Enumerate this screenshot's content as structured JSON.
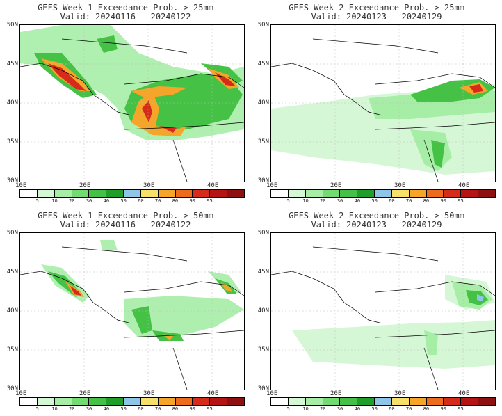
{
  "panels": [
    {
      "title": "GEFS Week-1 Exceedance Prob. > 25mm",
      "valid": "Valid: 20240116 - 20240122"
    },
    {
      "title": "GEFS Week-2 Exceedance Prob. > 25mm",
      "valid": "Valid: 20240123 - 20240129"
    },
    {
      "title": "GEFS Week-1 Exceedance Prob. > 50mm",
      "valid": "Valid: 20240116 - 20240122"
    },
    {
      "title": "GEFS Week-2 Exceedance Prob. > 50mm",
      "valid": "Valid: 20240123 - 20240129"
    }
  ],
  "lat_labels": [
    "50N",
    "45N",
    "40N",
    "35N",
    "30N"
  ],
  "lon_labels": [
    "10E",
    "20E",
    "30E",
    "40E"
  ],
  "colorbar": {
    "colors": [
      "#ffffff",
      "#d4f7d4",
      "#a6eda6",
      "#72db72",
      "#45c245",
      "#1f9e2a",
      "#8fc6e8",
      "#f6e06a",
      "#f4a52a",
      "#ee6a1c",
      "#d62a1a",
      "#b41414",
      "#8f1010"
    ],
    "labels": [
      "5",
      "10",
      "20",
      "30",
      "40",
      "50",
      "60",
      "70",
      "80",
      "90",
      "95"
    ]
  }
}
